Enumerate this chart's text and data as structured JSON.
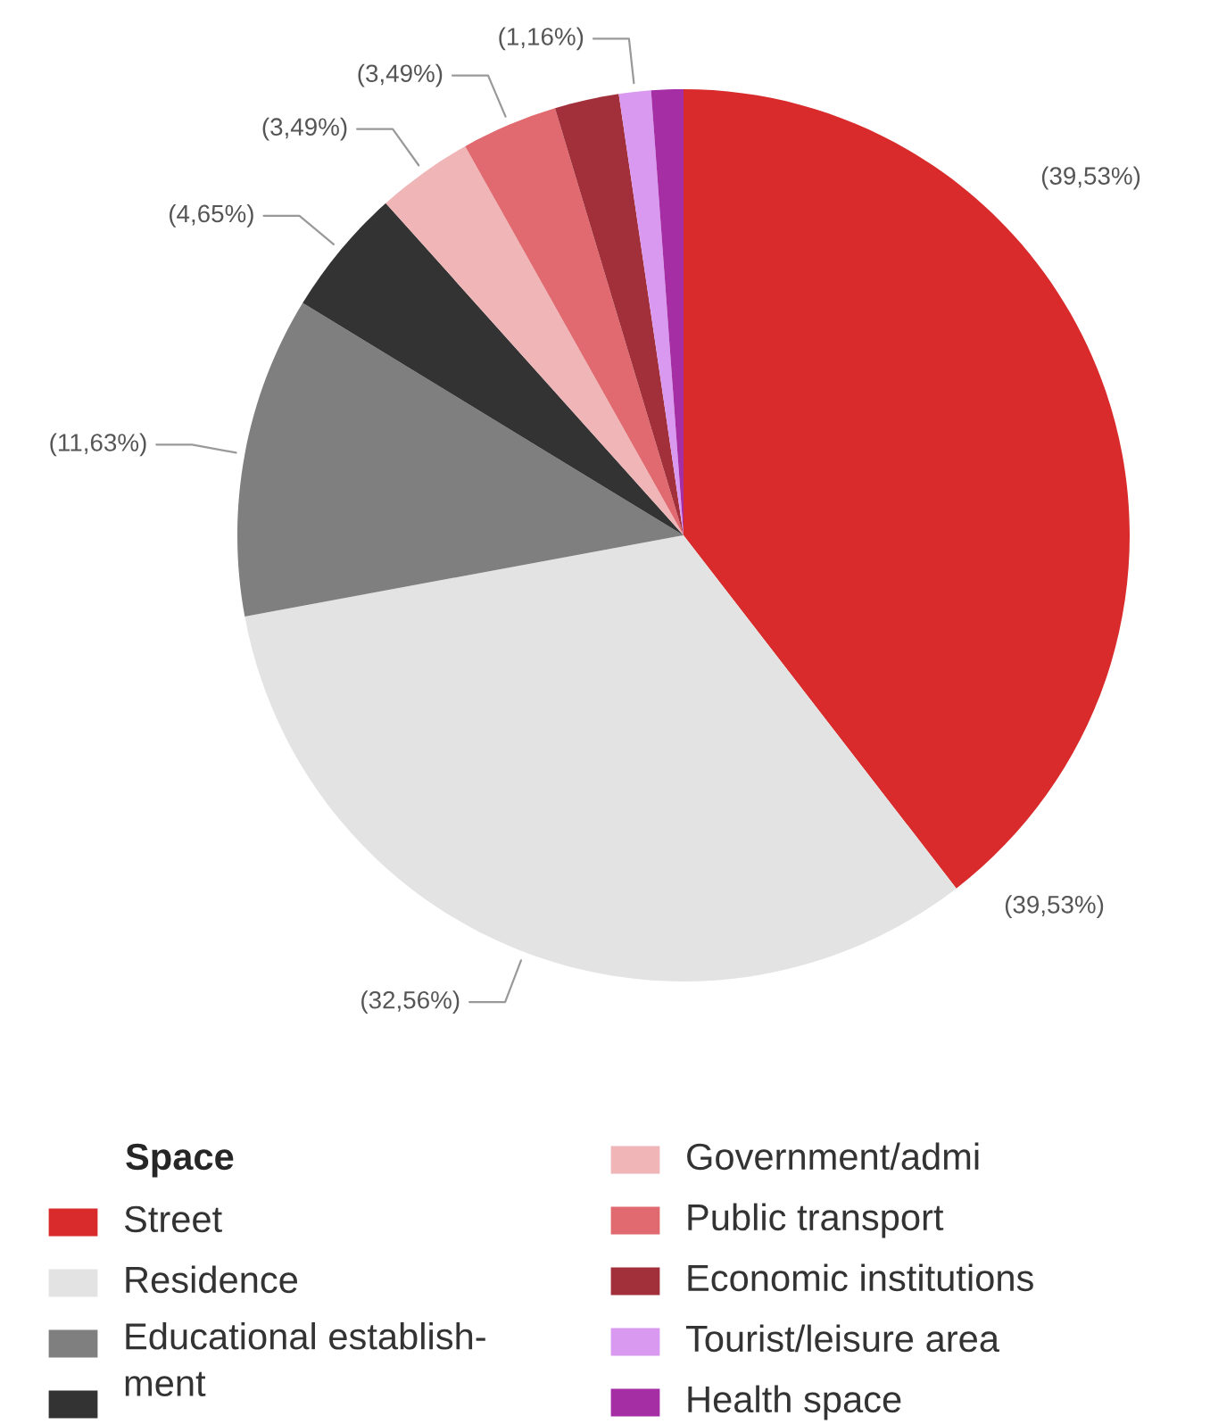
{
  "chart_data": {
    "type": "pie",
    "categories": [
      "Street",
      "Residence",
      "Educational establish-\nment",
      null,
      "Government/admi",
      "Public transport",
      "Economic institutions",
      "Tourist/leisure area",
      "Health space"
    ],
    "values": [
      39.53,
      32.56,
      11.63,
      4.65,
      3.49,
      3.49,
      2.33,
      1.16,
      1.16
    ],
    "value_labels": [
      "(39,53%)",
      "(32,56%)",
      "(11,63%)",
      "(4,65%)",
      "(3,49%)",
      "(3,49%)",
      null,
      "(1,16%)",
      null
    ],
    "colors": [
      "#d92b2b",
      "#e3e3e3",
      "#7f7f7f",
      "#333333",
      "#f0b5b7",
      "#e06a70",
      "#a1303b",
      "#d999f0",
      "#a52ea5"
    ],
    "legend_title": "Space",
    "legend": "bottom",
    "annotations": [
      "(39,53%)"
    ]
  }
}
